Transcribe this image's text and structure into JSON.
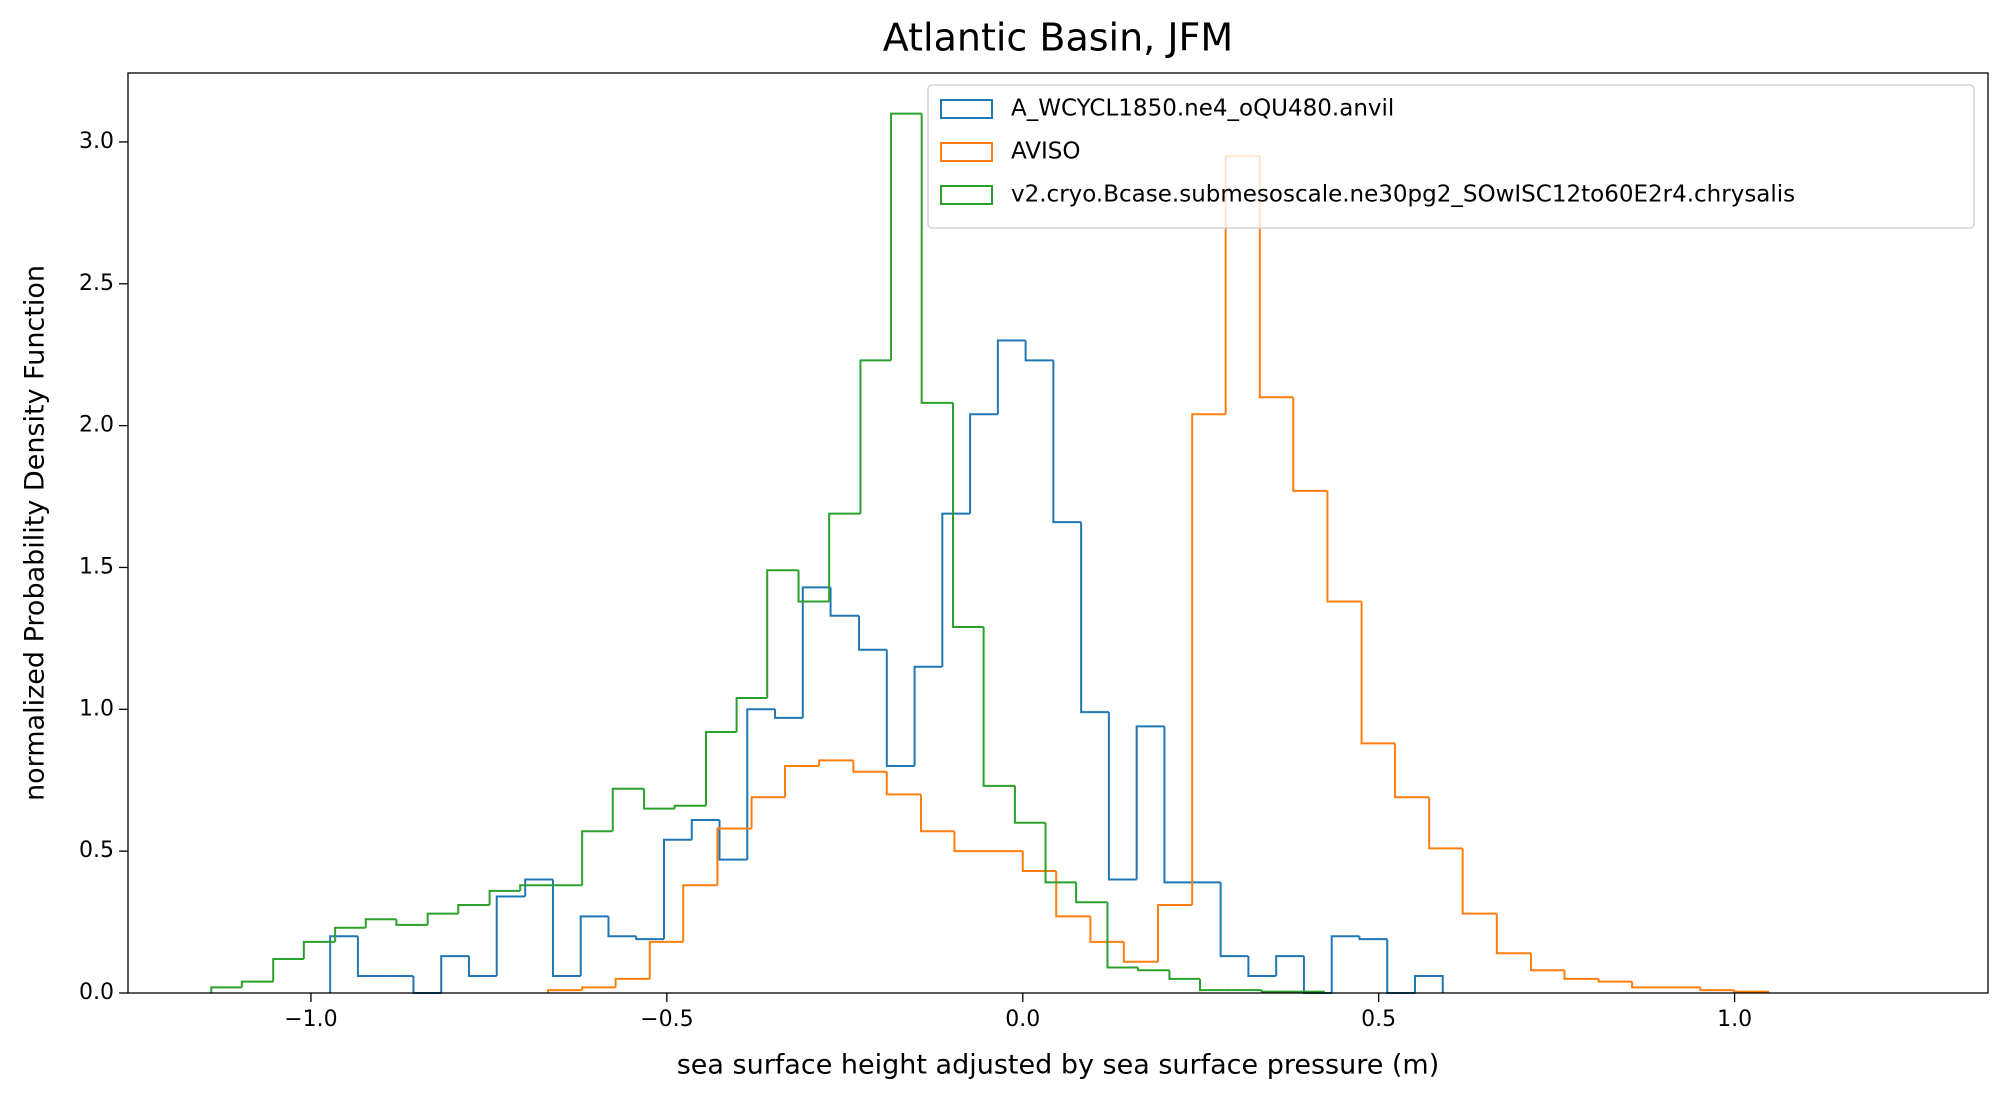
{
  "chart_data": {
    "type": "histogram",
    "title": "Atlantic Basin, JFM",
    "xlabel": "sea surface height adjusted by sea surface pressure (m)",
    "ylabel": "normalized Probability Density Function",
    "xlim": [
      -1.257,
      1.356
    ],
    "ylim": [
      0,
      3.243
    ],
    "xticks": [
      {
        "value": -1.0,
        "label": "−1.0"
      },
      {
        "value": -0.5,
        "label": "−0.5"
      },
      {
        "value": 0,
        "label": "0.0"
      },
      0.5,
      {
        "value": 1,
        "label": "1.0"
      }
    ],
    "yticks": [
      {
        "value": 0,
        "label": "0.0"
      },
      0.5,
      {
        "value": 1,
        "label": "1.0"
      },
      1.5,
      {
        "value": 2,
        "label": "2.0"
      },
      2.5,
      {
        "value": 3,
        "label": "3.0"
      }
    ],
    "legend": "upper right",
    "series": [
      {
        "name": "A_WCYCL1850.ne4_oQU480.anvil",
        "color": "#1f77b4",
        "bins": [
          -0.973,
          -0.934,
          -0.895,
          -0.856,
          -0.817,
          -0.778,
          -0.739,
          -0.699,
          -0.66,
          -0.621,
          -0.582,
          -0.543,
          -0.504,
          -0.465,
          -0.426,
          -0.387,
          -0.348,
          -0.309,
          -0.27,
          -0.23,
          -0.191,
          -0.152,
          -0.113,
          -0.074,
          -0.035,
          0.004,
          0.043,
          0.082,
          0.121,
          0.16,
          0.199,
          0.239,
          0.278,
          0.317,
          0.356,
          0.395,
          0.434,
          0.473,
          0.512,
          0.551,
          0.59
        ],
        "values": [
          0.2,
          0.06,
          0.06,
          0,
          0.13,
          0.06,
          0.34,
          0.4,
          0.06,
          0.27,
          0.2,
          0.19,
          0.54,
          0.61,
          0.47,
          1.0,
          0.97,
          1.43,
          1.33,
          1.21,
          0.8,
          1.15,
          1.69,
          2.04,
          2.3,
          2.23,
          1.66,
          0.99,
          0.4,
          0.94,
          0.39,
          0.39,
          0.13,
          0.06,
          0.13,
          0,
          0.2,
          0.19,
          0,
          0.06
        ]
      },
      {
        "name": "AVISO",
        "color": "#ff7f0e",
        "bins": [
          -0.667,
          -0.619,
          -0.572,
          -0.524,
          -0.477,
          -0.429,
          -0.381,
          -0.334,
          -0.286,
          -0.238,
          -0.191,
          -0.143,
          -0.096,
          -0.048,
          0.0,
          0.047,
          0.095,
          0.142,
          0.19,
          0.238,
          0.285,
          0.333,
          0.38,
          0.428,
          0.476,
          0.523,
          0.571,
          0.618,
          0.666,
          0.714,
          0.761,
          0.809,
          0.856,
          0.904,
          0.952,
          0.999,
          1.047
        ],
        "values": [
          0.01,
          0.02,
          0.05,
          0.18,
          0.38,
          0.58,
          0.69,
          0.8,
          0.82,
          0.78,
          0.7,
          0.57,
          0.5,
          0.5,
          0.43,
          0.27,
          0.18,
          0.11,
          0.31,
          2.04,
          2.95,
          2.1,
          1.77,
          1.38,
          0.88,
          0.69,
          0.51,
          0.28,
          0.14,
          0.08,
          0.05,
          0.04,
          0.02,
          0.02,
          0.01,
          0.005
        ]
      },
      {
        "name": "v2.cryo.Bcase.submesoscale.ne30pg2_SOwISC12to60E2r4.chrysalis",
        "color": "#2ca02c",
        "bins": [
          -1.14,
          -1.097,
          -1.053,
          -1.01,
          -0.966,
          -0.923,
          -0.88,
          -0.836,
          -0.793,
          -0.749,
          -0.706,
          -0.662,
          -0.619,
          -0.576,
          -0.532,
          -0.489,
          -0.445,
          -0.402,
          -0.359,
          -0.315,
          -0.272,
          -0.228,
          -0.185,
          -0.142,
          -0.098,
          -0.055,
          -0.011,
          0.032,
          0.075,
          0.119,
          0.162,
          0.206,
          0.249,
          0.293,
          0.336,
          0.379,
          0.423
        ],
        "values": [
          0.02,
          0.04,
          0.12,
          0.18,
          0.23,
          0.26,
          0.24,
          0.28,
          0.31,
          0.36,
          0.38,
          0.38,
          0.57,
          0.72,
          0.65,
          0.66,
          0.92,
          1.04,
          1.49,
          1.38,
          1.69,
          2.23,
          3.1,
          2.08,
          1.29,
          0.73,
          0.6,
          0.39,
          0.32,
          0.09,
          0.08,
          0.05,
          0.01,
          0.01,
          0.005,
          0.005
        ]
      }
    ]
  }
}
